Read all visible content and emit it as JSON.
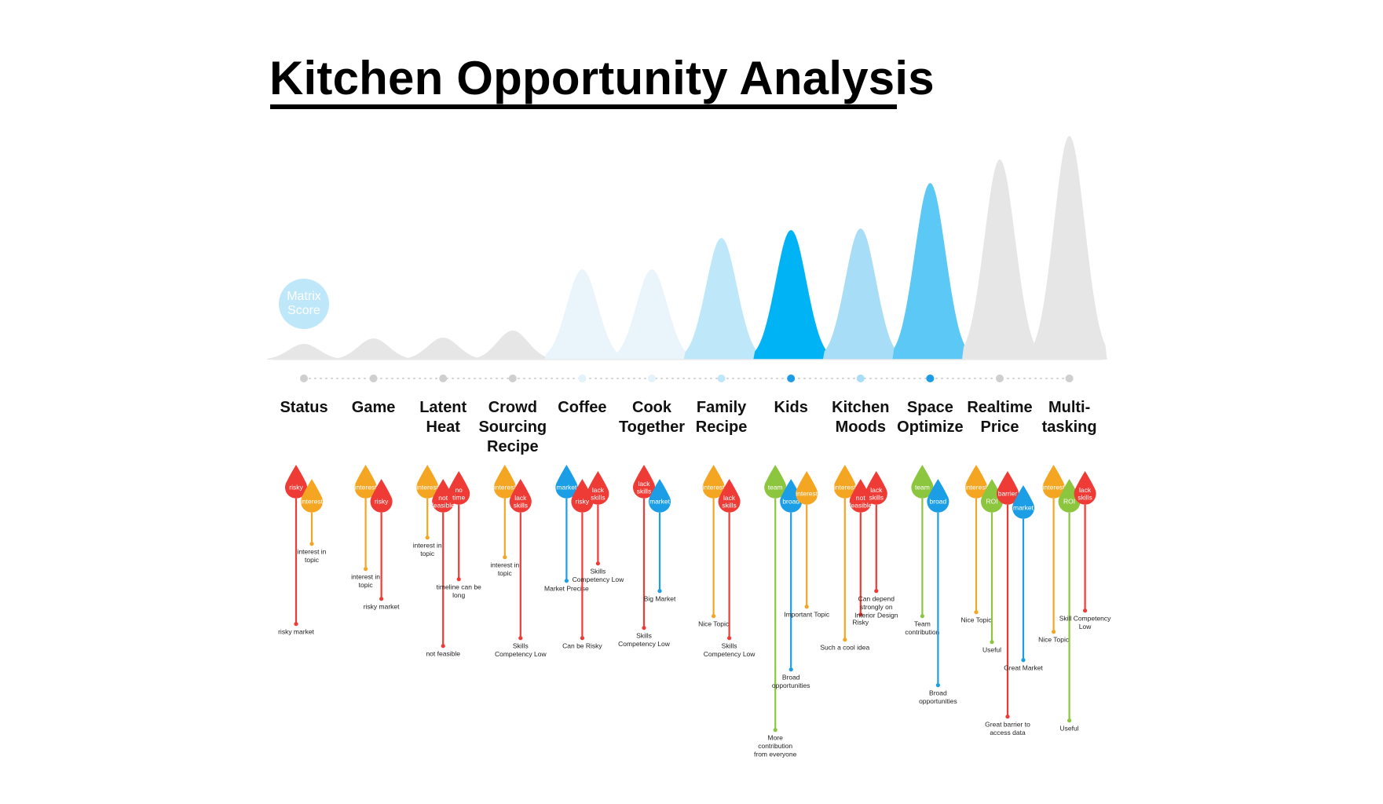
{
  "title": "Kitchen Opportunity Analysis",
  "badge": "Matrix Score",
  "colors": {
    "orange": "#f4a623",
    "red": "#ef3b36",
    "blue": "#1b9ee6",
    "green": "#8cc63f",
    "gray": "#e6e6e6",
    "palest_blue": "#e9f4fb",
    "pale_blue": "#bfe7fa",
    "light_blue": "#a7ddf6",
    "mid_blue": "#5bc8f5",
    "bright_blue": "#00b3f5"
  },
  "chart_data": {
    "type": "distribution",
    "categories": [
      {
        "label": "Status",
        "score": 2,
        "tone": "gray",
        "drops": [
          {
            "label": "risky",
            "color": "red",
            "note": "risky market",
            "depth": 160
          },
          {
            "label": "interest",
            "color": "orange",
            "note": "interest in topic",
            "depth": 40
          }
        ]
      },
      {
        "label": "Game",
        "score": 2.7,
        "tone": "gray",
        "drops": [
          {
            "label": "interest",
            "color": "orange",
            "note": "interest in topic",
            "depth": 90
          },
          {
            "label": "risky",
            "color": "red",
            "note": "risky market",
            "depth": 110
          }
        ]
      },
      {
        "label": "Latent Heat",
        "score": 2.8,
        "tone": "gray",
        "drops": [
          {
            "label": "interest",
            "color": "orange",
            "note": "interest in topic",
            "depth": 50
          },
          {
            "label": "not feasible",
            "color": "red",
            "note": "not feasible",
            "depth": 170
          },
          {
            "label": "no time",
            "color": "red",
            "note": "timeline can be long",
            "depth": 95
          }
        ]
      },
      {
        "label": "Crowd Sourcing Recipe",
        "score": 3.7,
        "tone": "gray",
        "drops": [
          {
            "label": "interest",
            "color": "orange",
            "note": "interest in topic",
            "depth": 75
          },
          {
            "label": "lack skills",
            "color": "red",
            "note": "Skills Competency Low",
            "depth": 160
          }
        ]
      },
      {
        "label": "Coffee",
        "score": 11.5,
        "tone": "palest_blue",
        "drops": [
          {
            "label": "market",
            "color": "blue",
            "note": "Market Precise",
            "depth": 105
          },
          {
            "label": "risky",
            "color": "red",
            "note": "Can be Risky",
            "depth": 160
          },
          {
            "label": "lack skills",
            "color": "red",
            "note": "Skills Competency Low",
            "depth": 75
          }
        ]
      },
      {
        "label": "Cook Together",
        "score": 11.5,
        "tone": "palest_blue",
        "drops": [
          {
            "label": "lack skills",
            "color": "red",
            "note": "Skills Competency Low",
            "depth": 165
          },
          {
            "label": "market",
            "color": "blue",
            "note": "Big Market",
            "depth": 100
          }
        ]
      },
      {
        "label": "Family Recipe",
        "score": 15.5,
        "tone": "pale_blue",
        "drops": [
          {
            "label": "interest",
            "color": "orange",
            "note": "Nice Topic",
            "depth": 150
          },
          {
            "label": "lack skills",
            "color": "red",
            "note": "Skills Competency Low",
            "depth": 160
          }
        ]
      },
      {
        "label": "Kids",
        "score": 16.5,
        "tone": "bright_blue",
        "drops": [
          {
            "label": "team",
            "color": "green",
            "note": "More contribution from everyone",
            "depth": 295
          },
          {
            "label": "broad",
            "color": "blue",
            "note": "Broad opportunities",
            "depth": 200
          },
          {
            "label": "interest",
            "color": "orange",
            "note": "Important Topic",
            "depth": 130
          }
        ]
      },
      {
        "label": "Kitchen Moods",
        "score": 16.7,
        "tone": "light_blue",
        "drops": [
          {
            "label": "interest",
            "color": "orange",
            "note": "Such a cool idea",
            "depth": 180
          },
          {
            "label": "not feasible",
            "color": "red",
            "note": "Risky",
            "depth": 130
          },
          {
            "label": "lack skills",
            "color": "red",
            "note": "Can depend strongly on Interior Design",
            "depth": 110
          }
        ]
      },
      {
        "label": "Space Optimize",
        "score": 22.5,
        "tone": "mid_blue",
        "drops": [
          {
            "label": "team",
            "color": "green",
            "note": "Team contribution",
            "depth": 150
          },
          {
            "label": "broad",
            "color": "blue",
            "note": "Broad opportunities",
            "depth": 220
          }
        ]
      },
      {
        "label": "Realtime Price",
        "score": 25.5,
        "tone": "gray",
        "drops": [
          {
            "label": "interest",
            "color": "orange",
            "note": "Nice Topic",
            "depth": 145
          },
          {
            "label": "ROI",
            "color": "green",
            "note": "Useful",
            "depth": 165
          },
          {
            "label": "barrier",
            "color": "red",
            "note": "Great barrier to access data",
            "depth": 270
          },
          {
            "label": "market",
            "color": "blue",
            "note": "Great Market",
            "depth": 180
          }
        ]
      },
      {
        "label": "Multi-tasking",
        "score": 28.5,
        "tone": "gray",
        "drops": [
          {
            "label": "interest",
            "color": "orange",
            "note": "Nice Topic",
            "depth": 170
          },
          {
            "label": "ROI",
            "color": "green",
            "note": "Useful",
            "depth": 265
          },
          {
            "label": "lack skills",
            "color": "red",
            "note": "Skill Competency Low",
            "depth": 135
          }
        ]
      }
    ]
  }
}
